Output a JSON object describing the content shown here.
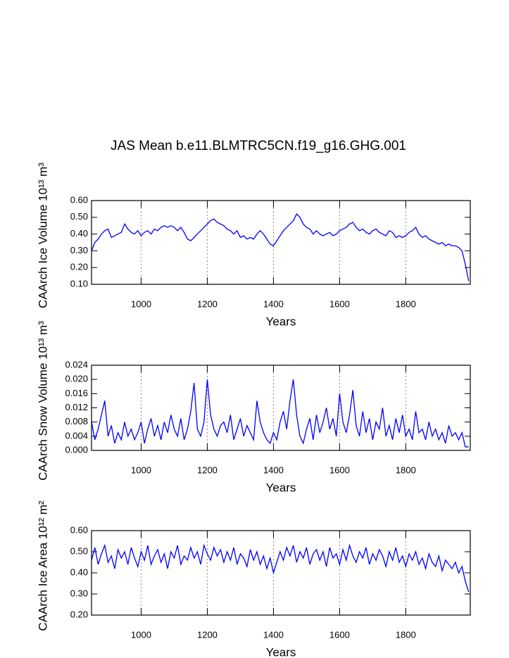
{
  "title": "JAS Mean b.e11.BLMTRC5CN.f19_g16.GHG.001",
  "chart_data": [
    {
      "type": "line",
      "ylabel": "CAArch Ice Volume 10¹³ m³",
      "xlabel": "Years",
      "x": [
        850,
        860,
        870,
        880,
        890,
        900,
        910,
        920,
        930,
        940,
        950,
        960,
        970,
        980,
        990,
        1000,
        1010,
        1020,
        1030,
        1040,
        1050,
        1060,
        1070,
        1080,
        1090,
        1100,
        1110,
        1120,
        1130,
        1140,
        1150,
        1160,
        1170,
        1180,
        1190,
        1200,
        1210,
        1220,
        1230,
        1240,
        1250,
        1260,
        1270,
        1280,
        1290,
        1300,
        1310,
        1320,
        1330,
        1340,
        1350,
        1360,
        1370,
        1380,
        1390,
        1400,
        1410,
        1420,
        1430,
        1440,
        1450,
        1460,
        1470,
        1480,
        1490,
        1500,
        1510,
        1520,
        1530,
        1540,
        1550,
        1560,
        1570,
        1580,
        1590,
        1600,
        1610,
        1620,
        1630,
        1640,
        1650,
        1660,
        1670,
        1680,
        1690,
        1700,
        1710,
        1720,
        1730,
        1740,
        1750,
        1760,
        1770,
        1780,
        1790,
        1800,
        1810,
        1820,
        1830,
        1840,
        1850,
        1860,
        1870,
        1880,
        1890,
        1900,
        1910,
        1920,
        1930,
        1940,
        1950,
        1960,
        1970,
        1980,
        1990
      ],
      "series": [
        {
          "color": "#0000ff",
          "values": [
            0.3,
            0.35,
            0.37,
            0.4,
            0.42,
            0.43,
            0.38,
            0.39,
            0.4,
            0.41,
            0.46,
            0.43,
            0.41,
            0.4,
            0.42,
            0.39,
            0.41,
            0.42,
            0.4,
            0.43,
            0.42,
            0.44,
            0.45,
            0.44,
            0.45,
            0.44,
            0.42,
            0.44,
            0.41,
            0.37,
            0.36,
            0.38,
            0.4,
            0.42,
            0.44,
            0.46,
            0.48,
            0.49,
            0.47,
            0.46,
            0.45,
            0.43,
            0.42,
            0.4,
            0.42,
            0.38,
            0.39,
            0.37,
            0.38,
            0.37,
            0.4,
            0.42,
            0.4,
            0.37,
            0.34,
            0.33,
            0.36,
            0.39,
            0.42,
            0.44,
            0.46,
            0.48,
            0.52,
            0.5,
            0.46,
            0.44,
            0.43,
            0.4,
            0.42,
            0.4,
            0.39,
            0.4,
            0.41,
            0.39,
            0.4,
            0.42,
            0.43,
            0.44,
            0.46,
            0.47,
            0.44,
            0.42,
            0.43,
            0.41,
            0.4,
            0.42,
            0.43,
            0.41,
            0.4,
            0.39,
            0.42,
            0.41,
            0.38,
            0.39,
            0.38,
            0.39,
            0.41,
            0.42,
            0.44,
            0.4,
            0.38,
            0.39,
            0.37,
            0.36,
            0.35,
            0.34,
            0.35,
            0.33,
            0.34,
            0.33,
            0.33,
            0.32,
            0.3,
            0.22,
            0.12
          ]
        }
      ],
      "xlim": [
        850,
        1995
      ],
      "xticks": [
        1000,
        1200,
        1400,
        1600,
        1800
      ],
      "ylim": [
        0.1,
        0.6
      ],
      "yticks": [
        {
          "value": 0.1,
          "label": "0.10"
        },
        {
          "value": 0.2,
          "label": "0.20"
        },
        {
          "value": 0.3,
          "label": "0.30"
        },
        {
          "value": 0.4,
          "label": "0.40"
        },
        {
          "value": 0.5,
          "label": "0.50"
        },
        {
          "value": 0.6,
          "label": "0.60"
        }
      ],
      "grid": true
    },
    {
      "type": "line",
      "ylabel": "CAArch Snow Volume 10¹³ m³",
      "xlabel": "Years",
      "x": [
        850,
        860,
        870,
        880,
        890,
        900,
        910,
        920,
        930,
        940,
        950,
        960,
        970,
        980,
        990,
        1000,
        1010,
        1020,
        1030,
        1040,
        1050,
        1060,
        1070,
        1080,
        1090,
        1100,
        1110,
        1120,
        1130,
        1140,
        1150,
        1160,
        1170,
        1180,
        1190,
        1200,
        1210,
        1220,
        1230,
        1240,
        1250,
        1260,
        1270,
        1280,
        1290,
        1300,
        1310,
        1320,
        1330,
        1340,
        1350,
        1360,
        1370,
        1380,
        1390,
        1400,
        1410,
        1420,
        1430,
        1440,
        1450,
        1460,
        1470,
        1480,
        1490,
        1500,
        1510,
        1520,
        1530,
        1540,
        1550,
        1560,
        1570,
        1580,
        1590,
        1600,
        1610,
        1620,
        1630,
        1640,
        1650,
        1660,
        1670,
        1680,
        1690,
        1700,
        1710,
        1720,
        1730,
        1740,
        1750,
        1760,
        1770,
        1780,
        1790,
        1800,
        1810,
        1820,
        1830,
        1840,
        1850,
        1860,
        1870,
        1880,
        1890,
        1900,
        1910,
        1920,
        1930,
        1940,
        1950,
        1960,
        1970,
        1980,
        1990
      ],
      "series": [
        {
          "color": "#0000ff",
          "values": [
            0.008,
            0.003,
            0.006,
            0.01,
            0.014,
            0.004,
            0.007,
            0.002,
            0.005,
            0.003,
            0.008,
            0.004,
            0.006,
            0.003,
            0.005,
            0.008,
            0.002,
            0.006,
            0.009,
            0.004,
            0.007,
            0.003,
            0.008,
            0.005,
            0.01,
            0.006,
            0.004,
            0.009,
            0.003,
            0.006,
            0.011,
            0.019,
            0.006,
            0.004,
            0.008,
            0.02,
            0.01,
            0.006,
            0.004,
            0.007,
            0.008,
            0.005,
            0.01,
            0.003,
            0.006,
            0.009,
            0.004,
            0.007,
            0.005,
            0.003,
            0.014,
            0.008,
            0.005,
            0.003,
            0.002,
            0.005,
            0.003,
            0.008,
            0.011,
            0.006,
            0.014,
            0.02,
            0.01,
            0.004,
            0.002,
            0.006,
            0.009,
            0.003,
            0.01,
            0.005,
            0.008,
            0.012,
            0.006,
            0.009,
            0.004,
            0.016,
            0.008,
            0.005,
            0.01,
            0.017,
            0.007,
            0.004,
            0.011,
            0.005,
            0.009,
            0.003,
            0.008,
            0.006,
            0.012,
            0.004,
            0.007,
            0.003,
            0.009,
            0.005,
            0.01,
            0.004,
            0.006,
            0.003,
            0.011,
            0.005,
            0.006,
            0.003,
            0.008,
            0.004,
            0.006,
            0.003,
            0.005,
            0.002,
            0.007,
            0.004,
            0.005,
            0.003,
            0.005,
            0.001,
            0.001
          ]
        }
      ],
      "xlim": [
        850,
        1995
      ],
      "xticks": [
        1000,
        1200,
        1400,
        1600,
        1800
      ],
      "ylim": [
        0,
        0.024
      ],
      "yticks": [
        {
          "value": 0,
          "label": "0.000"
        },
        {
          "value": 0.004,
          "label": "0.004"
        },
        {
          "value": 0.008,
          "label": "0.008"
        },
        {
          "value": 0.012,
          "label": "0.012"
        },
        {
          "value": 0.016,
          "label": "0.016"
        },
        {
          "value": 0.02,
          "label": "0.020"
        },
        {
          "value": 0.024,
          "label": "0.024"
        }
      ],
      "grid": true
    },
    {
      "type": "line",
      "ylabel": "CAArch Ice Area 10¹² m²",
      "xlabel": "Years",
      "x": [
        850,
        860,
        870,
        880,
        890,
        900,
        910,
        920,
        930,
        940,
        950,
        960,
        970,
        980,
        990,
        1000,
        1010,
        1020,
        1030,
        1040,
        1050,
        1060,
        1070,
        1080,
        1090,
        1100,
        1110,
        1120,
        1130,
        1140,
        1150,
        1160,
        1170,
        1180,
        1190,
        1200,
        1210,
        1220,
        1230,
        1240,
        1250,
        1260,
        1270,
        1280,
        1290,
        1300,
        1310,
        1320,
        1330,
        1340,
        1350,
        1360,
        1370,
        1380,
        1390,
        1400,
        1410,
        1420,
        1430,
        1440,
        1450,
        1460,
        1470,
        1480,
        1490,
        1500,
        1510,
        1520,
        1530,
        1540,
        1550,
        1560,
        1570,
        1580,
        1590,
        1600,
        1610,
        1620,
        1630,
        1640,
        1650,
        1660,
        1670,
        1680,
        1690,
        1700,
        1710,
        1720,
        1730,
        1740,
        1750,
        1760,
        1770,
        1780,
        1790,
        1800,
        1810,
        1820,
        1830,
        1840,
        1850,
        1860,
        1870,
        1880,
        1890,
        1900,
        1910,
        1920,
        1930,
        1940,
        1950,
        1960,
        1970,
        1980,
        1990
      ],
      "series": [
        {
          "color": "#0000ff",
          "values": [
            0.46,
            0.52,
            0.44,
            0.49,
            0.53,
            0.45,
            0.48,
            0.42,
            0.51,
            0.47,
            0.5,
            0.44,
            0.52,
            0.47,
            0.43,
            0.5,
            0.46,
            0.53,
            0.44,
            0.48,
            0.51,
            0.45,
            0.49,
            0.42,
            0.5,
            0.47,
            0.53,
            0.44,
            0.48,
            0.46,
            0.52,
            0.47,
            0.5,
            0.44,
            0.53,
            0.49,
            0.46,
            0.52,
            0.48,
            0.51,
            0.45,
            0.5,
            0.46,
            0.52,
            0.44,
            0.49,
            0.47,
            0.43,
            0.51,
            0.46,
            0.5,
            0.44,
            0.48,
            0.42,
            0.47,
            0.4,
            0.45,
            0.5,
            0.46,
            0.52,
            0.48,
            0.53,
            0.45,
            0.5,
            0.47,
            0.52,
            0.44,
            0.49,
            0.51,
            0.46,
            0.5,
            0.43,
            0.52,
            0.47,
            0.49,
            0.44,
            0.51,
            0.46,
            0.53,
            0.48,
            0.45,
            0.5,
            0.47,
            0.52,
            0.44,
            0.49,
            0.46,
            0.51,
            0.48,
            0.43,
            0.5,
            0.46,
            0.52,
            0.45,
            0.48,
            0.43,
            0.49,
            0.46,
            0.5,
            0.44,
            0.47,
            0.42,
            0.49,
            0.45,
            0.43,
            0.48,
            0.41,
            0.46,
            0.44,
            0.42,
            0.45,
            0.4,
            0.43,
            0.36,
            0.31
          ]
        }
      ],
      "xlim": [
        850,
        1995
      ],
      "xticks": [
        1000,
        1200,
        1400,
        1600,
        1800
      ],
      "ylim": [
        0.2,
        0.6
      ],
      "yticks": [
        {
          "value": 0.2,
          "label": "0.20"
        },
        {
          "value": 0.3,
          "label": "0.30"
        },
        {
          "value": 0.4,
          "label": "0.40"
        },
        {
          "value": 0.5,
          "label": "0.50"
        },
        {
          "value": 0.6,
          "label": "0.60"
        }
      ],
      "grid": true
    }
  ]
}
